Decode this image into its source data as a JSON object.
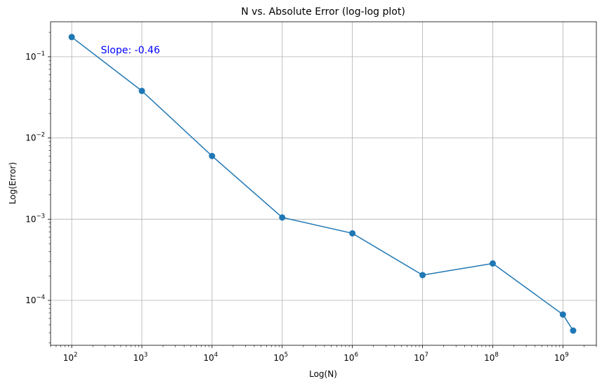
{
  "chart_data": {
    "type": "line",
    "title": "N vs. Absolute Error (log-log plot)",
    "xlabel": "Log(N)",
    "ylabel": "Log(Error)",
    "xscale": "log",
    "yscale": "log",
    "xlim": [
      50,
      3000000000
    ],
    "ylim": [
      2.8e-05,
      0.27
    ],
    "grid": true,
    "series": [
      {
        "color": "#1f77b4",
        "marker": "circle",
        "x": [
          100,
          1000,
          10000,
          100000,
          1000000,
          10000000,
          100000000,
          1000000000,
          1400000000
        ],
        "y": [
          0.175,
          0.038,
          0.006,
          0.00105,
          0.00067,
          0.000205,
          0.000285,
          6.7e-05,
          4.25e-05
        ]
      }
    ],
    "xticks": [
      {
        "base": "10",
        "exp": "2",
        "value": 100
      },
      {
        "base": "10",
        "exp": "3",
        "value": 1000
      },
      {
        "base": "10",
        "exp": "4",
        "value": 10000
      },
      {
        "base": "10",
        "exp": "5",
        "value": 100000
      },
      {
        "base": "10",
        "exp": "6",
        "value": 1000000
      },
      {
        "base": "10",
        "exp": "7",
        "value": 10000000
      },
      {
        "base": "10",
        "exp": "8",
        "value": 100000000
      },
      {
        "base": "10",
        "exp": "9",
        "value": 1000000000
      }
    ],
    "yticks": [
      {
        "base": "10",
        "exp": "−1",
        "value": 0.1
      },
      {
        "base": "10",
        "exp": "−2",
        "value": 0.01
      },
      {
        "base": "10",
        "exp": "−3",
        "value": 0.001
      },
      {
        "base": "10",
        "exp": "−4",
        "value": 0.0001
      }
    ],
    "annotation": {
      "text": "Slope: -0.46",
      "x": 260,
      "y": 0.11,
      "color": "#0000ff"
    }
  }
}
